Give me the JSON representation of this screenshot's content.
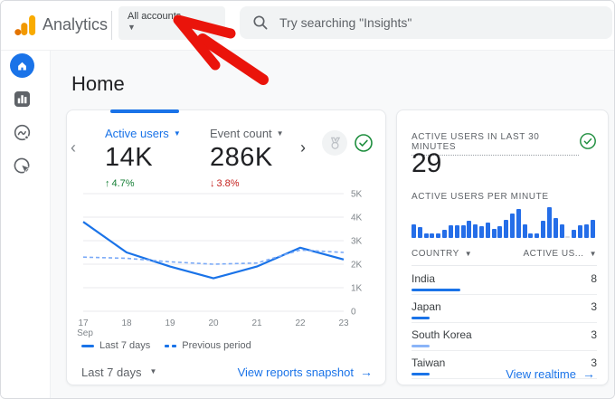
{
  "topbar": {
    "brand": "Analytics",
    "account_selector": {
      "label": "All accounts"
    },
    "search": {
      "placeholder": "Try searching \"Insights\""
    }
  },
  "sidebar": {
    "items": [
      {
        "name": "home",
        "icon": "home-icon",
        "active": true
      },
      {
        "name": "reports",
        "icon": "bar-chart-icon",
        "active": false
      },
      {
        "name": "explore",
        "icon": "explore-trend-icon",
        "active": false
      },
      {
        "name": "advertising",
        "icon": "cursor-target-icon",
        "active": false
      }
    ]
  },
  "page": {
    "title": "Home"
  },
  "overview_card": {
    "metrics": [
      {
        "label": "Active users",
        "value": "14K",
        "delta_arrow": "↑",
        "delta": "4.7%",
        "trend": "up",
        "active": true
      },
      {
        "label": "Event count",
        "value": "286K",
        "delta_arrow": "↓",
        "delta": "3.8%",
        "trend": "down",
        "active": false
      }
    ],
    "legend": [
      "Last 7 days",
      "Previous period"
    ],
    "range_label": "Last 7 days",
    "link_label": "View reports snapshot",
    "link_arrow": "→"
  },
  "realtime_card": {
    "title": "ACTIVE USERS IN LAST 30 MINUTES",
    "value": "29",
    "per_minute_label": "ACTIVE USERS PER MINUTE",
    "table": {
      "columns": [
        "COUNTRY",
        "ACTIVE US..."
      ],
      "rows": [
        {
          "country": "India",
          "active_users": 8,
          "bar_color": "#1a73e8"
        },
        {
          "country": "Japan",
          "active_users": 3,
          "bar_color": "#1a73e8"
        },
        {
          "country": "South Korea",
          "active_users": 3,
          "bar_color": "#8ab4f8"
        },
        {
          "country": "Taiwan",
          "active_users": 3,
          "bar_color": "#1a73e8"
        }
      ]
    },
    "link_label": "View realtime",
    "link_arrow": "→"
  },
  "colors": {
    "accent_blue": "#1a73e8",
    "light_blue": "#7baaf7",
    "positive_green": "#188038",
    "negative_red": "#c5221f",
    "annotation_red": "#ea140b",
    "logo_amber": "#f9ab00",
    "logo_orange": "#e37400"
  },
  "chart_data": [
    {
      "type": "line",
      "title": "Active users: last 7 days vs previous period",
      "x": [
        "17 Sep",
        "18",
        "19",
        "20",
        "21",
        "22",
        "23"
      ],
      "series": [
        {
          "name": "Last 7 days",
          "style": "solid",
          "values": [
            3.8,
            2.5,
            1.9,
            1.4,
            1.9,
            2.7,
            2.2
          ]
        },
        {
          "name": "Previous period",
          "style": "dashed",
          "values": [
            2.3,
            2.25,
            2.1,
            2.0,
            2.05,
            2.6,
            2.5
          ]
        }
      ],
      "unit": "K users",
      "ylim": [
        0,
        5
      ],
      "yticks": [
        "5K",
        "4K",
        "3K",
        "2K",
        "1K",
        "0"
      ],
      "grid": true,
      "legend_position": "bottom"
    },
    {
      "type": "bar",
      "title": "ACTIVE USERS PER MINUTE",
      "note": "30 one-minute bars, relative heights 0-10",
      "values": [
        4.5,
        3.5,
        1.5,
        1.5,
        1.5,
        2.5,
        4,
        4,
        4,
        5.5,
        4.5,
        3.8,
        5,
        2.8,
        3.8,
        6,
        8,
        9.5,
        4.5,
        1.5,
        1.5,
        5.5,
        10,
        6.5,
        4.5,
        0.5,
        2.5,
        4,
        4.5,
        6
      ],
      "ylim": [
        0,
        10
      ]
    },
    {
      "type": "table",
      "columns": [
        "COUNTRY",
        "ACTIVE US..."
      ],
      "rows": [
        [
          "India",
          8
        ],
        [
          "Japan",
          3
        ],
        [
          "South Korea",
          3
        ],
        [
          "Taiwan",
          3
        ]
      ]
    }
  ]
}
